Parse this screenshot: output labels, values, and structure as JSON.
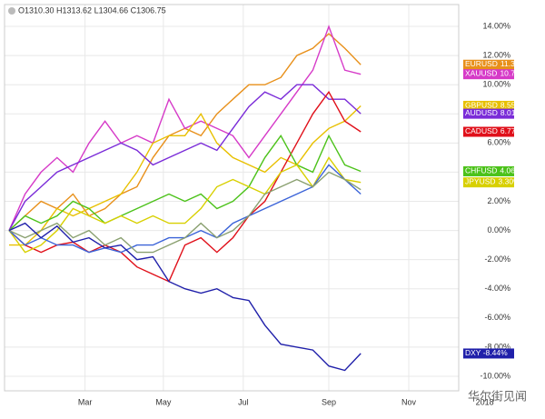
{
  "header": "O1310.30 H1313.62 L1304.66 C1306.75",
  "watermark": "华尔街见闻",
  "chart_data": {
    "type": "line",
    "x": [
      0,
      4,
      8,
      12,
      16,
      20,
      24,
      28,
      32,
      36,
      40,
      44,
      48,
      52,
      56,
      60,
      64,
      68,
      72,
      76,
      80,
      84,
      88
    ],
    "xlim": [
      0,
      120
    ],
    "xticks": [
      {
        "value": 19,
        "label": "Mar"
      },
      {
        "value": 38.6,
        "label": "May"
      },
      {
        "value": 58.6,
        "label": "Jul"
      },
      {
        "value": 80,
        "label": "Sep"
      },
      {
        "value": 100,
        "label": "Nov"
      },
      {
        "value": 119,
        "label": "2018"
      }
    ],
    "ylim": [
      -11,
      15.5
    ],
    "yticks": [
      {
        "value": 14,
        "label": "14.00%"
      },
      {
        "value": 12,
        "label": "12.00%"
      },
      {
        "value": 10,
        "label": "10.00%"
      },
      {
        "value": 8,
        "label": "8.00%"
      },
      {
        "value": 6,
        "label": "6.00%"
      },
      {
        "value": 4,
        "label": "4.00%"
      },
      {
        "value": 2,
        "label": "2.00%"
      },
      {
        "value": 0,
        "label": "0.00%"
      },
      {
        "value": -2,
        "label": "-2.00%"
      },
      {
        "value": -4,
        "label": "-4.00%"
      },
      {
        "value": -6,
        "label": "-6.00%"
      },
      {
        "value": -8,
        "label": "-8.00%"
      },
      {
        "value": -10,
        "label": "-10.00%"
      }
    ],
    "grid": true,
    "series": [
      {
        "name": "EURUSD",
        "color": "#e8901a",
        "last_value": 11.37,
        "last_label": "11.37%",
        "values": [
          0,
          1.0,
          2.0,
          1.5,
          2.5,
          1.0,
          1.5,
          2.5,
          3.0,
          5.0,
          6.5,
          7.0,
          6.5,
          8.0,
          9.0,
          10.0,
          10.0,
          10.5,
          12.0,
          12.5,
          13.5,
          12.5,
          11.37
        ]
      },
      {
        "name": "XAUUSD",
        "color": "#d63ac8",
        "last_value": 10.72,
        "last_label": "10.72%",
        "values": [
          0,
          2.5,
          4,
          5,
          4,
          6,
          7.5,
          6,
          6.5,
          6,
          9,
          7,
          7.5,
          7,
          6.5,
          5,
          6.5,
          8,
          9.5,
          11,
          14,
          11,
          10.72
        ]
      },
      {
        "name": "GBPUSD",
        "color": "#e8c000",
        "last_value": 8.55,
        "last_label": "8.55%",
        "values": [
          -1,
          -1,
          0,
          1.5,
          1,
          1.5,
          2.0,
          2.5,
          4,
          6,
          6.5,
          6.5,
          8,
          6,
          5,
          4.5,
          4,
          5,
          4.5,
          6,
          7,
          7.5,
          8.55
        ]
      },
      {
        "name": "AUDUSD",
        "color": "#7a2bd8",
        "last_value": 8.01,
        "last_label": "8.01%",
        "values": [
          0,
          2,
          3,
          4,
          4.5,
          5,
          5.5,
          6,
          5.5,
          4.5,
          5,
          5.5,
          6,
          5.5,
          7,
          8.5,
          9.5,
          9,
          10,
          10,
          9,
          9,
          8.01
        ]
      },
      {
        "name": "CADUSD",
        "color": "#e0101a",
        "last_value": 6.77,
        "last_label": "6.77%",
        "values": [
          0,
          -1,
          -1.5,
          -1,
          -0.8,
          -1.5,
          -1,
          -1.5,
          -2.5,
          -3,
          -3.5,
          -1,
          -0.5,
          -1.5,
          -0.5,
          1,
          2,
          4,
          6,
          8,
          9.5,
          7.5,
          6.77
        ]
      },
      {
        "name": "CHFUSD",
        "color": "#4cc21a",
        "last_value": 4.06,
        "last_label": "4.06%",
        "values": [
          0,
          1,
          0.5,
          1,
          2,
          1.5,
          0.5,
          1,
          1.5,
          2,
          2.5,
          2,
          2.5,
          1.5,
          2,
          3,
          5,
          6.5,
          4.5,
          4,
          6.5,
          4.5,
          4.06
        ]
      },
      {
        "name": "JPYUSD",
        "color": "#d8d000",
        "last_value": 3.3,
        "last_label": "3.30%",
        "values": [
          0,
          -1.5,
          -1,
          0,
          1.5,
          1,
          0.5,
          1,
          0.5,
          1,
          0.5,
          0.5,
          1.5,
          3,
          3.5,
          3,
          2.5,
          4,
          4.5,
          3,
          5,
          3.5,
          3.3
        ]
      },
      {
        "color": "#3b63d8",
        "values": [
          0,
          -1,
          -0.5,
          -1,
          -1,
          -1.5,
          -1.2,
          -1.5,
          -1,
          -1,
          -0.5,
          -0.5,
          0,
          -0.5,
          0.5,
          1,
          1.5,
          2,
          2.5,
          3,
          4.5,
          3.5,
          2.5
        ]
      },
      {
        "color": "#8aa070",
        "values": [
          0,
          -0.5,
          0,
          0.5,
          -0.5,
          0,
          -1,
          -0.5,
          -1.5,
          -1.5,
          -1,
          -0.5,
          0.5,
          -0.5,
          0,
          1,
          2.5,
          3,
          3.5,
          3,
          4,
          3.5,
          2.8
        ]
      },
      {
        "name": "DXY",
        "color": "#2020aa",
        "last_value": -8.44,
        "last_label": "-8.44%",
        "values": [
          0,
          0.5,
          -0.5,
          0.3,
          -0.8,
          -0.5,
          -1.2,
          -1.0,
          -2.0,
          -1.8,
          -3.5,
          -4.0,
          -4.3,
          -4.0,
          -4.6,
          -4.8,
          -6.5,
          -7.8,
          -8.0,
          -8.2,
          -9.3,
          -9.6,
          -8.44
        ]
      }
    ]
  }
}
